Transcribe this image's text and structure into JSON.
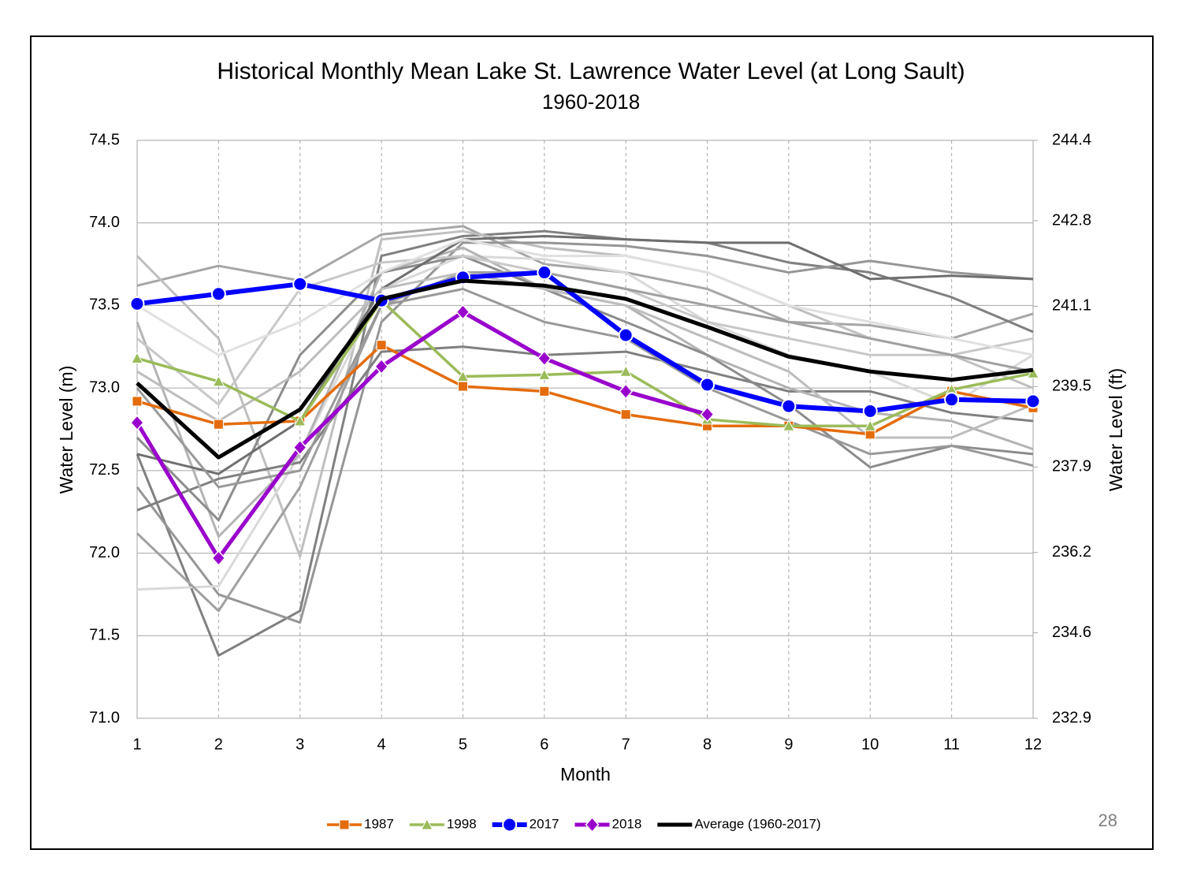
{
  "chart_data": {
    "type": "line",
    "title": "Historical Monthly Mean Lake St. Lawrence Water Level (at Long Sault)",
    "subtitle": "1960-2018",
    "x_label": "Month",
    "y_label": "Water Level (m)",
    "y2_label": "Water Level (ft)",
    "page_number": "28",
    "x": [
      1,
      2,
      3,
      4,
      5,
      6,
      7,
      8,
      9,
      10,
      11,
      12
    ],
    "xlim": [
      1,
      12
    ],
    "xticks": [
      1,
      2,
      3,
      4,
      5,
      6,
      7,
      8,
      9,
      10,
      11,
      12
    ],
    "ylim": [
      71.0,
      74.5
    ],
    "yticks": [
      {
        "value": 71.0,
        "label": "71.0"
      },
      71.5,
      {
        "value": 72.0,
        "label": "72.0"
      },
      72.5,
      {
        "value": 73.0,
        "label": "73.0"
      },
      73.5,
      {
        "value": 74.0,
        "label": "74.0"
      },
      74.5
    ],
    "y2lim": [
      232.9,
      244.4
    ],
    "y2ticks": [
      232.9,
      234.6,
      236.2,
      237.9,
      239.5,
      241.1,
      242.8,
      244.4
    ],
    "grid": true,
    "legend": "bottom",
    "series": [
      {
        "color": "#a6a6a6",
        "values": [
          73.62,
          73.74,
          73.65,
          73.93,
          73.98,
          73.75,
          73.7,
          73.6,
          73.4,
          73.38,
          73.3,
          73.45
        ]
      },
      {
        "color": "#808080",
        "values": [
          72.6,
          71.38,
          71.65,
          73.8,
          73.92,
          73.95,
          73.9,
          73.88,
          73.76,
          73.7,
          73.55,
          73.34
        ]
      },
      {
        "color": "#bfbfbf",
        "values": [
          73.8,
          73.3,
          71.98,
          73.9,
          73.95,
          73.85,
          73.8,
          73.7,
          73.5,
          73.3,
          73.2,
          73.0
        ]
      },
      {
        "color": "#969696",
        "values": [
          72.4,
          71.75,
          71.58,
          73.4,
          73.88,
          73.88,
          73.86,
          73.8,
          73.7,
          73.77,
          73.7,
          73.66
        ]
      },
      {
        "color": "#d9d9d9",
        "values": [
          71.78,
          71.8,
          72.6,
          73.6,
          73.8,
          73.78,
          73.7,
          73.4,
          73.2,
          73.1,
          72.9,
          73.2
        ]
      },
      {
        "color": "#7f7f7f",
        "values": [
          72.26,
          72.45,
          72.55,
          73.22,
          73.25,
          73.2,
          73.22,
          73.1,
          72.98,
          72.98,
          72.85,
          72.8
        ]
      },
      {
        "color": "#b3b3b3",
        "values": [
          73.4,
          72.1,
          72.6,
          73.7,
          73.85,
          73.6,
          73.5,
          73.2,
          73.0,
          72.85,
          72.8,
          72.63
        ]
      },
      {
        "color": "#8c8c8c",
        "values": [
          72.7,
          72.2,
          73.2,
          73.7,
          73.8,
          73.6,
          73.4,
          73.2,
          72.9,
          72.52,
          72.65,
          72.6
        ]
      },
      {
        "color": "#c8c8c8",
        "values": [
          73.3,
          72.9,
          73.6,
          73.76,
          73.8,
          73.7,
          73.6,
          73.4,
          73.3,
          73.2,
          73.2,
          73.3
        ]
      },
      {
        "color": "#a0a0a0",
        "values": [
          72.12,
          71.65,
          72.4,
          73.5,
          73.7,
          73.7,
          73.6,
          73.5,
          73.4,
          73.3,
          73.2,
          73.1
        ]
      },
      {
        "color": "#6e6e6e",
        "values": [
          72.6,
          72.48,
          72.8,
          73.6,
          73.9,
          73.92,
          73.9,
          73.88,
          73.88,
          73.66,
          73.68,
          73.66
        ]
      },
      {
        "color": "#bdbdbd",
        "values": [
          73.1,
          72.8,
          73.1,
          73.6,
          73.7,
          73.6,
          73.5,
          73.3,
          73.1,
          72.7,
          72.7,
          72.9
        ]
      },
      {
        "color": "#999999",
        "values": [
          73.0,
          72.4,
          72.5,
          73.5,
          73.6,
          73.4,
          73.3,
          73.0,
          72.8,
          72.6,
          72.65,
          72.53
        ]
      },
      {
        "color": "#e0e0e0",
        "values": [
          73.5,
          73.2,
          73.4,
          73.7,
          73.9,
          73.8,
          73.8,
          73.7,
          73.5,
          73.4,
          73.3,
          73.2
        ]
      },
      {
        "name": "1987",
        "color": "#e46c0a",
        "marker": "square",
        "values": [
          72.92,
          72.78,
          72.8,
          73.26,
          73.01,
          72.98,
          72.84,
          72.77,
          72.77,
          72.72,
          72.98,
          72.88
        ]
      },
      {
        "name": "1998",
        "color": "#9bbb59",
        "marker": "triangle",
        "values": [
          73.18,
          73.04,
          72.8,
          73.53,
          73.07,
          73.08,
          73.1,
          72.81,
          72.77,
          72.77,
          72.99,
          73.09
        ]
      },
      {
        "name": "2017",
        "color": "#0000ff",
        "marker": "circle",
        "values": [
          73.51,
          73.57,
          73.63,
          73.53,
          73.67,
          73.7,
          73.32,
          73.02,
          72.89,
          72.86,
          72.93,
          72.92
        ]
      },
      {
        "name": "2018",
        "color": "#9900cc",
        "marker": "diamond",
        "values": [
          72.79,
          71.97,
          72.64,
          73.13,
          73.46,
          73.18,
          72.98,
          72.84,
          null,
          null,
          null,
          null
        ]
      },
      {
        "name": "Average (1960-2017)",
        "color": "#000000",
        "values": [
          73.03,
          72.58,
          72.87,
          73.54,
          73.65,
          73.62,
          73.54,
          73.37,
          73.19,
          73.1,
          73.05,
          73.11
        ]
      }
    ]
  }
}
